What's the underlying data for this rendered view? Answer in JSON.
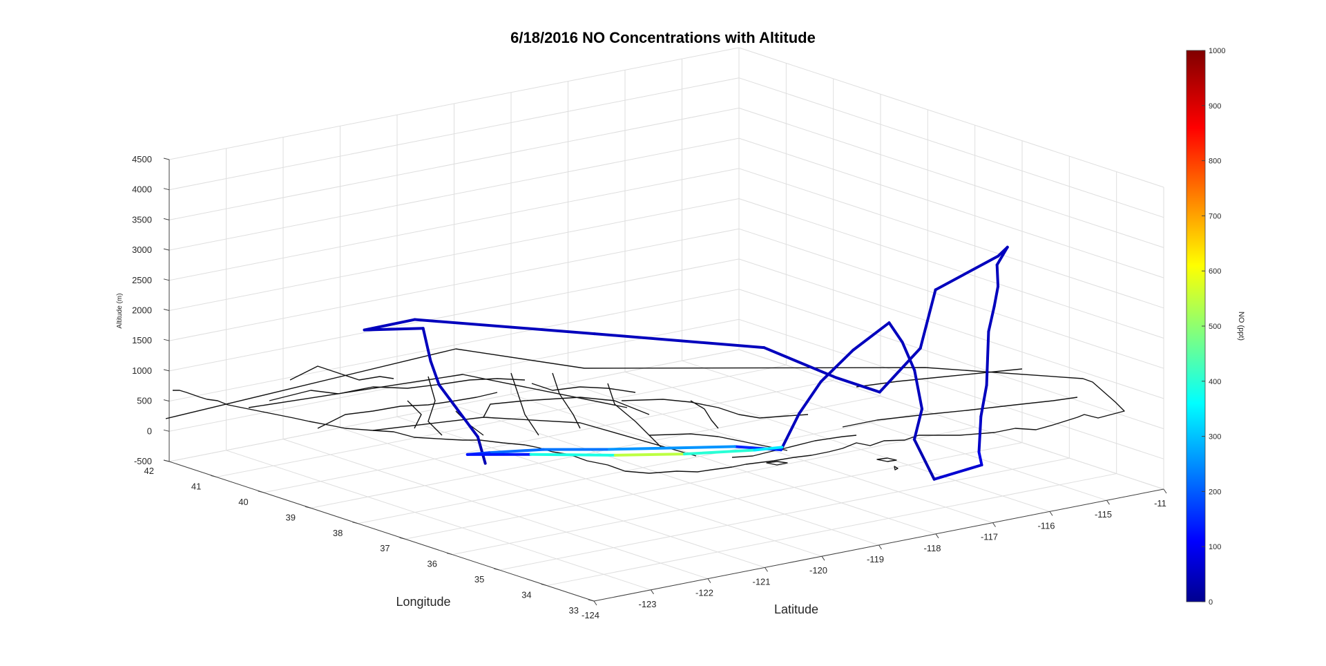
{
  "chart_data": {
    "type": "line3d",
    "title": "6/18/2016 NO Concentrations with Altitude",
    "xlabel": "Latitude",
    "ylabel": "Longitude",
    "zlabel": "Altitude (m)",
    "colorbar_label": "NO (ppt)",
    "colormap": "jet",
    "x_ticks": [
      "-124",
      "-123",
      "-122",
      "-121",
      "-120",
      "-119",
      "-118",
      "-117",
      "-116",
      "-115",
      "-11"
    ],
    "y_ticks": [
      "42",
      "41",
      "40",
      "39",
      "38",
      "37",
      "36",
      "35",
      "34",
      "33"
    ],
    "z_ticks": [
      "4500",
      "4000",
      "3500",
      "3000",
      "2500",
      "2000",
      "1500",
      "1000",
      "500",
      "0",
      "-500"
    ],
    "colorbar_ticks": [
      "1000",
      "900",
      "800",
      "700",
      "600",
      "500",
      "400",
      "300",
      "200",
      "100",
      "0"
    ],
    "xlim": [
      -124,
      -114
    ],
    "ylim": [
      33,
      42
    ],
    "zlim": [
      -500,
      4500
    ],
    "clim": [
      0,
      1000
    ],
    "grid": true,
    "series": [
      {
        "points": [
          [
            -121.6,
            38.2,
            0,
            40
          ],
          [
            -121.4,
            38.6,
            300,
            60
          ],
          [
            -121.5,
            39.3,
            1000,
            60
          ],
          [
            -121.4,
            39.6,
            1300,
            60
          ],
          [
            -121.2,
            40.0,
            1700,
            60
          ],
          [
            -121.9,
            40.4,
            1700,
            60
          ],
          [
            -121.1,
            40.3,
            1750,
            60
          ],
          [
            -119.6,
            38.3,
            1750,
            60
          ],
          [
            -118.2,
            36.4,
            1750,
            60
          ],
          [
            -117.1,
            36.2,
            1100,
            60
          ],
          [
            -116.5,
            36.0,
            800,
            60
          ],
          [
            -116.2,
            35.5,
            1600,
            60
          ],
          [
            -116.1,
            35.3,
            2600,
            60
          ],
          [
            -115.5,
            34.7,
            3200,
            60
          ],
          [
            -115.5,
            34.5,
            3400,
            60
          ],
          [
            -115.6,
            34.6,
            3100,
            60
          ],
          [
            -115.5,
            34.7,
            2700,
            60
          ],
          [
            -115.4,
            34.9,
            2300,
            60
          ],
          [
            -115.5,
            34.9,
            1900,
            60
          ],
          [
            -115.6,
            34.8,
            1500,
            60
          ],
          [
            -115.7,
            34.7,
            1100,
            60
          ],
          [
            -115.8,
            34.7,
            600,
            60
          ],
          [
            -116.0,
            34.5,
            100,
            80
          ],
          [
            -116.2,
            34.2,
            0,
            120
          ],
          [
            -117.2,
            34.0,
            0,
            40
          ],
          [
            -117.3,
            34.3,
            600,
            60
          ],
          [
            -117.0,
            34.5,
            1000,
            60
          ],
          [
            -116.8,
            34.9,
            1500,
            60
          ],
          [
            -116.6,
            35.4,
            1800,
            60
          ],
          [
            -116.5,
            35.8,
            2000,
            60
          ],
          [
            -116.8,
            36.2,
            1500,
            60
          ],
          [
            -117.2,
            36.4,
            1000,
            60
          ],
          [
            -117.5,
            36.5,
            500,
            60
          ],
          [
            -117.9,
            36.4,
            0,
            60
          ],
          [
            -118.3,
            36.9,
            0,
            260
          ],
          [
            -119.8,
            37.8,
            0,
            280
          ],
          [
            -120.5,
            38.3,
            0,
            200
          ],
          [
            -121.2,
            38.6,
            0,
            260
          ],
          [
            -121.5,
            38.7,
            0,
            110
          ],
          [
            -120.8,
            38.2,
            0,
            180
          ],
          [
            -119.9,
            37.5,
            0,
            620
          ],
          [
            -119.1,
            37.0,
            0,
            500
          ],
          [
            -118.2,
            36.6,
            0,
            330
          ],
          [
            -117.8,
            36.5,
            0,
            380
          ]
        ]
      }
    ]
  }
}
